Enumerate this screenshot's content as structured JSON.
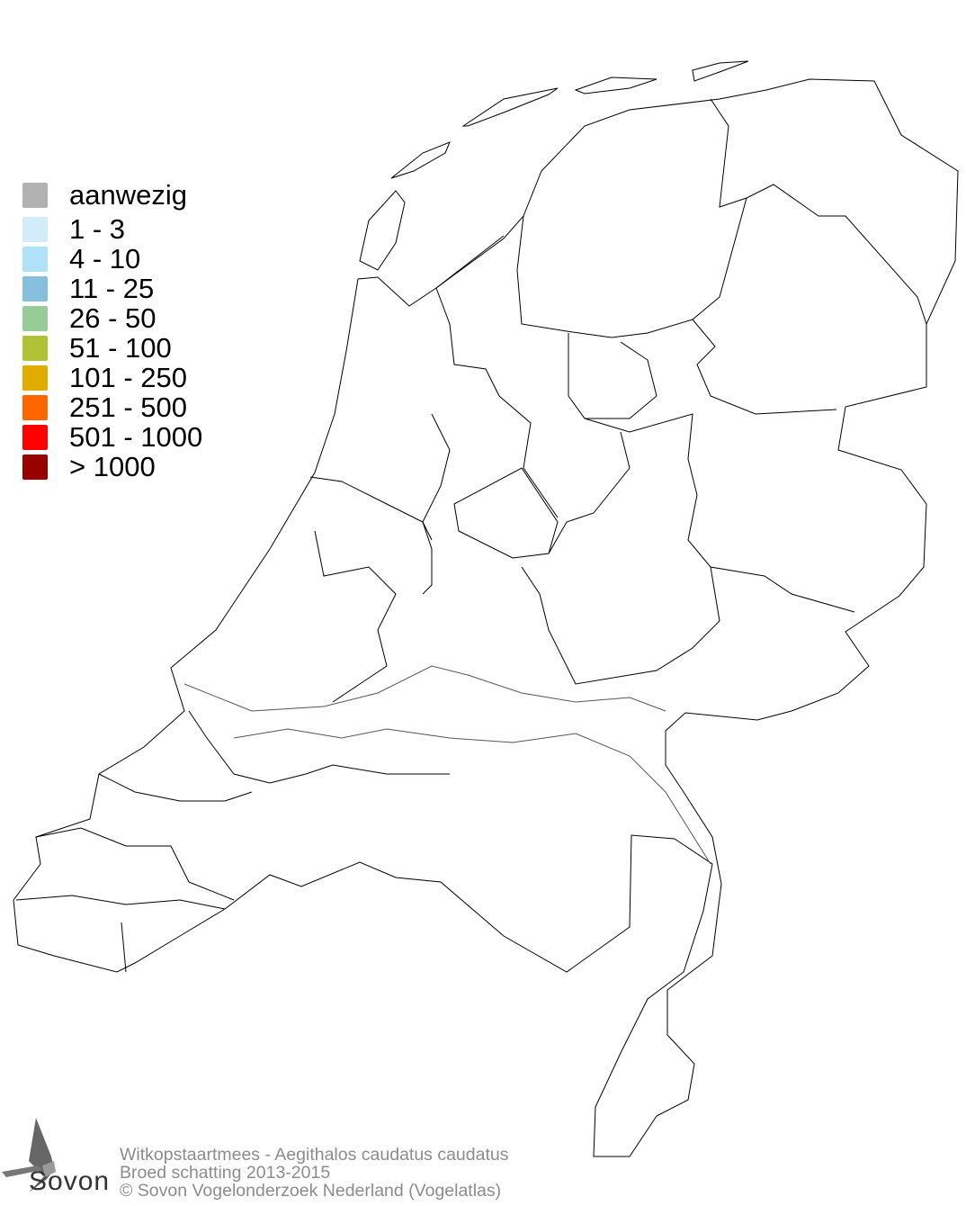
{
  "legend": {
    "items": [
      {
        "label": "aanwezig",
        "color": "#b2b2b2"
      },
      {
        "label": "1 - 3",
        "color": "#d3ecfa"
      },
      {
        "label": "4 - 10",
        "color": "#b0e2fa"
      },
      {
        "label": "11 - 25",
        "color": "#86c0de"
      },
      {
        "label": "26 - 50",
        "color": "#97cb98"
      },
      {
        "label": "51 - 100",
        "color": "#b2c236"
      },
      {
        "label": "101 - 250",
        "color": "#e0ac00"
      },
      {
        "label": "251 - 500",
        "color": "#ff6600"
      },
      {
        "label": "501 - 1000",
        "color": "#ff0000"
      },
      {
        "label": "> 1000",
        "color": "#990000"
      }
    ]
  },
  "footer": {
    "line1": "Witkopstaartmees - Aegithalos caudatus caudatus",
    "line2": "Broed schatting 2013-2015",
    "line3": "© Sovon Vogelonderzoek Nederland (Vogelatlas)"
  },
  "logo": {
    "text": "Sovon"
  }
}
